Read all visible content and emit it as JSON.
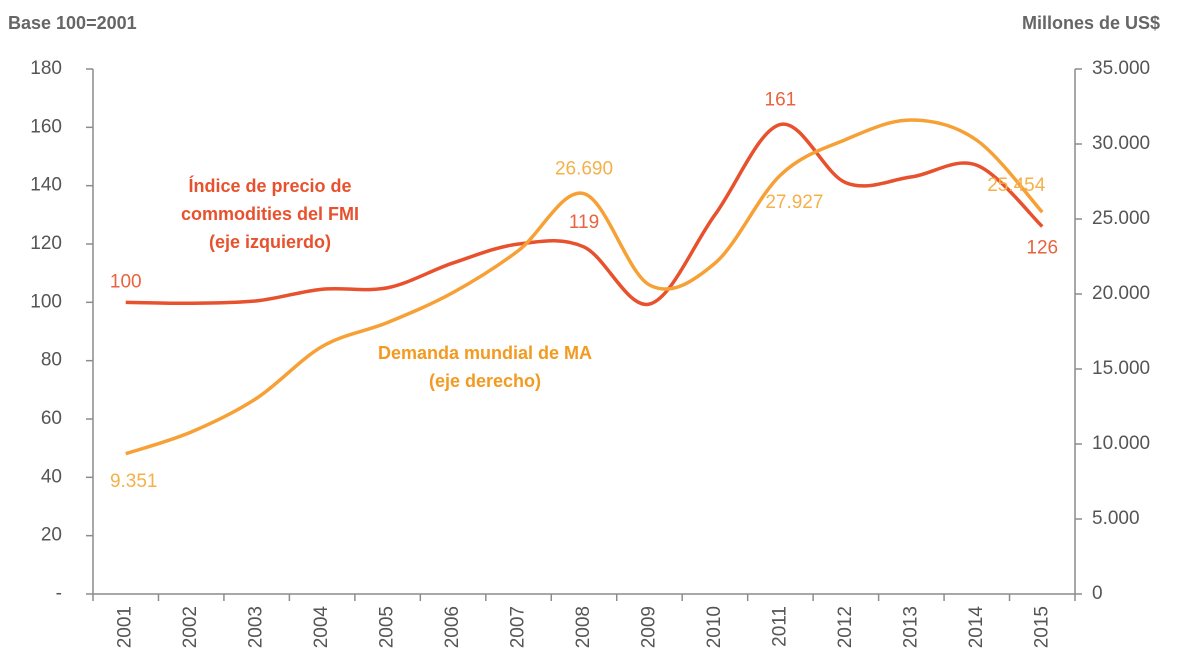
{
  "chart_data": {
    "type": "line",
    "y_title": "Base 100=2001",
    "y2_title": "Millones de US$",
    "categories": [
      "2001",
      "2002",
      "2003",
      "2004",
      "2005",
      "2006",
      "2007",
      "2008",
      "2009",
      "2010",
      "2011",
      "2012",
      "2013",
      "2014",
      "2015"
    ],
    "series": [
      {
        "color": "#e8512d",
        "label_color": "#e8633f",
        "values": [
          100,
          99.7,
          100.5,
          104.5,
          105,
          113.5,
          120,
          119,
          99.4,
          130,
          161,
          141,
          143,
          147,
          126
        ],
        "value_labels": [
          "100",
          null,
          null,
          null,
          null,
          null,
          null,
          "119",
          null,
          null,
          "161",
          null,
          null,
          null,
          "126"
        ]
      },
      {
        "color": "#f7a035",
        "label_color": "#f5b04a",
        "axis": "y2",
        "values": [
          9351,
          10800,
          13050,
          16500,
          18100,
          20100,
          22900,
          26690,
          20600,
          22050,
          27927,
          30300,
          31600,
          30250,
          25454
        ],
        "value_labels": [
          "9.351",
          null,
          null,
          null,
          null,
          null,
          null,
          "26.690",
          null,
          null,
          "27.927",
          null,
          null,
          null,
          "25.454"
        ]
      }
    ],
    "annotations": [
      {
        "lines": [
          "Índice de precio de",
          "commodities del FMI",
          "(eje izquierdo)"
        ],
        "color": "#e8512d"
      },
      {
        "lines": [
          "Demanda mundial de MA",
          "(eje derecho)"
        ],
        "color": "#f39a21"
      }
    ],
    "ylim": [
      0,
      180
    ],
    "yticks": [
      {
        "value": 0,
        "label": "-"
      },
      20,
      40,
      60,
      80,
      100,
      120,
      140,
      160,
      180
    ],
    "y2lim": [
      0,
      35000
    ],
    "y2ticks": [
      0,
      {
        "value": 5000,
        "label": "5.000"
      },
      {
        "value": 10000,
        "label": "10.000"
      },
      {
        "value": 15000,
        "label": "15.000"
      },
      {
        "value": 20000,
        "label": "20.000"
      },
      {
        "value": 25000,
        "label": "25.000"
      },
      {
        "value": 30000,
        "label": "30.000"
      },
      {
        "value": 35000,
        "label": "35.000"
      }
    ]
  }
}
